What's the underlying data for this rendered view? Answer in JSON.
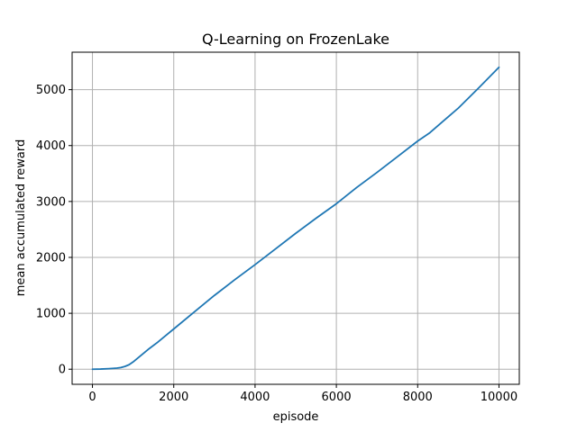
{
  "chart_data": {
    "type": "line",
    "title": "Q-Learning on FrozenLake",
    "xlabel": "episode",
    "ylabel": "mean accumulated reward",
    "xlim": [
      -500,
      10500
    ],
    "ylim": [
      -270,
      5670
    ],
    "xticks": [
      0,
      2000,
      4000,
      6000,
      8000,
      10000
    ],
    "yticks": [
      0,
      1000,
      2000,
      3000,
      4000,
      5000
    ],
    "grid": true,
    "series": [
      {
        "color": "#1f77b4",
        "x": [
          0,
          200,
          400,
          600,
          700,
          800,
          900,
          1000,
          1200,
          1400,
          1600,
          1800,
          2000,
          2500,
          3000,
          3500,
          4000,
          4500,
          5000,
          5500,
          6000,
          6500,
          7000,
          7500,
          8000,
          8300,
          8600,
          9000,
          9500,
          10000
        ],
        "y": [
          0,
          3,
          10,
          20,
          30,
          50,
          80,
          130,
          250,
          370,
          480,
          600,
          720,
          1020,
          1320,
          1600,
          1870,
          2150,
          2430,
          2700,
          2960,
          3250,
          3520,
          3800,
          4080,
          4230,
          4420,
          4670,
          5030,
          5400
        ]
      }
    ]
  }
}
